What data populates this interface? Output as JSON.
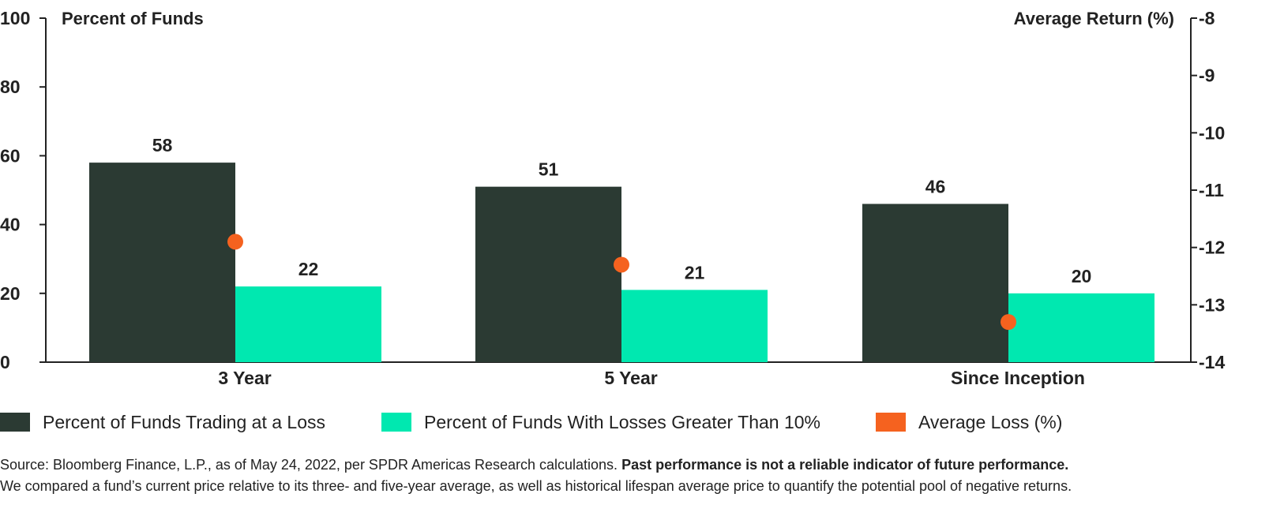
{
  "colors": {
    "loss": "#2b3a33",
    "loss10": "#00e8b0",
    "avg": "#f5621f",
    "axis": "#222222"
  },
  "chart_data": {
    "type": "bar",
    "categories": [
      "3 Year",
      "5 Year",
      "Since Inception"
    ],
    "series": [
      {
        "name": "Percent of Funds Trading at a Loss",
        "values": [
          58,
          51,
          46
        ],
        "axis": "left",
        "kind": "bar"
      },
      {
        "name": "Percent of Funds With Losses Greater Than 10%",
        "values": [
          22,
          21,
          20
        ],
        "axis": "left",
        "kind": "bar"
      },
      {
        "name": "Average Loss (%)",
        "values": [
          -11.9,
          -12.3,
          -13.3
        ],
        "axis": "right",
        "kind": "scatter"
      }
    ],
    "ylabel_left": "Percent of Funds",
    "ylabel_right": "Average Return (%)",
    "ylim_left": [
      0,
      100
    ],
    "ylim_right": [
      -14,
      -8
    ],
    "yticks_left": [
      0,
      20,
      40,
      60,
      80,
      100
    ],
    "yticks_right": [
      -14,
      -13,
      -12,
      -11,
      -10,
      -9,
      -8
    ],
    "grid": false,
    "legend_position": "bottom"
  },
  "legend": {
    "items": [
      {
        "label": "Percent of Funds Trading at a Loss",
        "color": "#2b3a33"
      },
      {
        "label": "Percent of Funds With Losses Greater Than 10%",
        "color": "#00e8b0"
      },
      {
        "label": "Average Loss (%)",
        "color": "#f5621f"
      }
    ]
  },
  "footer": {
    "source": "Source: Bloomberg Finance, L.P., as of May 24, 2022, per SPDR Americas Research calculations.",
    "disclaimer": "Past performance is not a reliable indicator of future performance.",
    "note": "We compared a fund’s current price relative to its three- and five-year average, as well as historical lifespan average price to quantify the potential pool of negative returns."
  }
}
